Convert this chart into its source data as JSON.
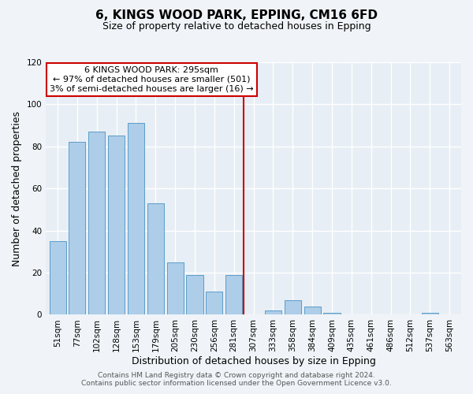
{
  "title": "6, KINGS WOOD PARK, EPPING, CM16 6FD",
  "subtitle": "Size of property relative to detached houses in Epping",
  "xlabel": "Distribution of detached houses by size in Epping",
  "ylabel": "Number of detached properties",
  "bar_labels": [
    "51sqm",
    "77sqm",
    "102sqm",
    "128sqm",
    "153sqm",
    "179sqm",
    "205sqm",
    "230sqm",
    "256sqm",
    "281sqm",
    "307sqm",
    "333sqm",
    "358sqm",
    "384sqm",
    "409sqm",
    "435sqm",
    "461sqm",
    "486sqm",
    "512sqm",
    "537sqm",
    "563sqm"
  ],
  "bar_values": [
    35,
    82,
    87,
    85,
    91,
    53,
    25,
    19,
    11,
    19,
    0,
    2,
    7,
    4,
    1,
    0,
    0,
    0,
    0,
    1,
    0
  ],
  "bar_color": "#aecde8",
  "bar_edge_color": "#5a9ec9",
  "vline_bar_index": 10,
  "vline_color": "#cc0000",
  "ylim": [
    0,
    120
  ],
  "yticks": [
    0,
    20,
    40,
    60,
    80,
    100,
    120
  ],
  "annotation_title": "6 KINGS WOOD PARK: 295sqm",
  "annotation_line1": "← 97% of detached houses are smaller (501)",
  "annotation_line2": "3% of semi-detached houses are larger (16) →",
  "footer_line1": "Contains HM Land Registry data © Crown copyright and database right 2024.",
  "footer_line2": "Contains public sector information licensed under the Open Government Licence v3.0.",
  "bg_color": "#f0f4f8",
  "plot_bg_color": "#e8eef5",
  "grid_color": "#ffffff",
  "title_fontsize": 11,
  "subtitle_fontsize": 9,
  "axis_label_fontsize": 9,
  "tick_fontsize": 7.5,
  "annotation_fontsize": 8,
  "footer_fontsize": 6.5
}
